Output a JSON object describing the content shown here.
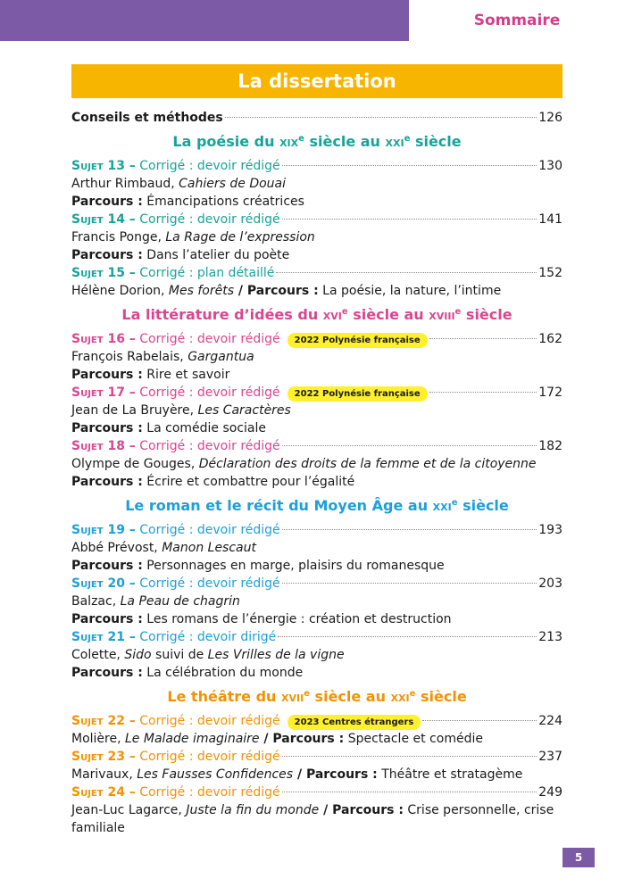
{
  "header": {
    "tab": "Sommaire"
  },
  "title": "La dissertation",
  "intro": {
    "label": "Conseils et méthodes",
    "page": "126"
  },
  "sections": [
    {
      "title": [
        "La poésie du ",
        "xix",
        "e",
        " siècle au ",
        "xxi",
        "e",
        " siècle"
      ],
      "entries": [
        {
          "subject": "Sujet 13 –",
          "kind": "Corrigé : devoir rédigé",
          "page": "130",
          "lines": [
            [
              {
                "t": "Arthur Rimbaud, ",
                "s": "r"
              },
              {
                "t": "Cahiers de Douai",
                "s": "i"
              }
            ],
            [
              {
                "t": "Parcours :",
                "s": "b"
              },
              {
                "t": " Émancipations créatrices",
                "s": "r"
              }
            ]
          ]
        },
        {
          "subject": "Sujet 14 –",
          "kind": "Corrigé : devoir rédigé",
          "page": "141",
          "lines": [
            [
              {
                "t": "Francis Ponge, ",
                "s": "r"
              },
              {
                "t": "La Rage de l’expression",
                "s": "i"
              }
            ],
            [
              {
                "t": "Parcours :",
                "s": "b"
              },
              {
                "t": " Dans l’atelier du poète",
                "s": "r"
              }
            ]
          ]
        },
        {
          "subject": "Sujet 15 –",
          "kind": "Corrigé : plan détaillé",
          "page": "152",
          "lines": [
            [
              {
                "t": "Hélène Dorion, ",
                "s": "r"
              },
              {
                "t": "Mes forêts",
                "s": "i"
              },
              {
                "t": " / Parcours :",
                "s": "b"
              },
              {
                "t": " La poésie, la nature, l’intime",
                "s": "r"
              }
            ]
          ]
        }
      ]
    },
    {
      "title": [
        "La littérature d’idées du ",
        "xvi",
        "e",
        " siècle au ",
        "xviii",
        "e",
        " siècle"
      ],
      "entries": [
        {
          "subject": "Sujet 16 –",
          "kind": "Corrigé : devoir rédigé",
          "badge": "2022 Polynésie française",
          "page": "162",
          "lines": [
            [
              {
                "t": "François Rabelais, ",
                "s": "r"
              },
              {
                "t": "Gargantua",
                "s": "i"
              }
            ],
            [
              {
                "t": "Parcours :",
                "s": "b"
              },
              {
                "t": " Rire et savoir",
                "s": "r"
              }
            ]
          ]
        },
        {
          "subject": "Sujet 17 –",
          "kind": "Corrigé : devoir rédigé",
          "badge": "2022 Polynésie française",
          "page": "172",
          "lines": [
            [
              {
                "t": "Jean de La Bruyère, ",
                "s": "r"
              },
              {
                "t": "Les Caractères",
                "s": "i"
              }
            ],
            [
              {
                "t": "Parcours :",
                "s": "b"
              },
              {
                "t": " La comédie sociale",
                "s": "r"
              }
            ]
          ]
        },
        {
          "subject": "Sujet 18 –",
          "kind": "Corrigé : devoir rédigé",
          "page": "182",
          "lines": [
            [
              {
                "t": "Olympe de Gouges, ",
                "s": "r"
              },
              {
                "t": "Déclaration des droits de la femme et de la citoyenne",
                "s": "i"
              }
            ],
            [
              {
                "t": "Parcours :",
                "s": "b"
              },
              {
                "t": " Écrire et combattre pour l’égalité",
                "s": "r"
              }
            ]
          ]
        }
      ]
    },
    {
      "title": [
        "Le roman et le récit du Moyen Âge au ",
        "xxi",
        "e",
        " siècle"
      ],
      "entries": [
        {
          "subject": "Sujet 19 –",
          "kind": "Corrigé : devoir rédigé",
          "page": "193",
          "lines": [
            [
              {
                "t": "Abbé Prévost, ",
                "s": "r"
              },
              {
                "t": "Manon Lescaut",
                "s": "i"
              }
            ],
            [
              {
                "t": "Parcours :",
                "s": "b"
              },
              {
                "t": " Personnages en marge, plaisirs du romanesque",
                "s": "r"
              }
            ]
          ]
        },
        {
          "subject": "Sujet 20 –",
          "kind": "Corrigé : devoir rédigé",
          "page": "203",
          "lines": [
            [
              {
                "t": "Balzac, ",
                "s": "r"
              },
              {
                "t": "La Peau de chagrin",
                "s": "i"
              }
            ],
            [
              {
                "t": "Parcours :",
                "s": "b"
              },
              {
                "t": " Les romans de l’énergie : création et destruction",
                "s": "r"
              }
            ]
          ]
        },
        {
          "subject": "Sujet 21 –",
          "kind": "Corrigé : devoir dirigé",
          "page": "213",
          "lines": [
            [
              {
                "t": "Colette, ",
                "s": "r"
              },
              {
                "t": "Sido",
                "s": "i"
              },
              {
                "t": " suivi de ",
                "s": "r"
              },
              {
                "t": "Les Vrilles de la vigne",
                "s": "i"
              }
            ],
            [
              {
                "t": "Parcours :",
                "s": "b"
              },
              {
                "t": " La célébration du monde",
                "s": "r"
              }
            ]
          ]
        }
      ]
    },
    {
      "title": [
        "Le théâtre du ",
        "xvii",
        "e",
        " siècle au ",
        "xxi",
        "e",
        " siècle"
      ],
      "entries": [
        {
          "subject": "Sujet 22 –",
          "kind": "Corrigé : devoir rédigé",
          "badge": "2023 Centres étrangers",
          "page": "224",
          "lines": [
            [
              {
                "t": "Molière, ",
                "s": "r"
              },
              {
                "t": "Le Malade imaginaire",
                "s": "i"
              },
              {
                "t": " / Parcours :",
                "s": "b"
              },
              {
                "t": " Spectacle et comédie",
                "s": "r"
              }
            ]
          ]
        },
        {
          "subject": "Sujet 23 –",
          "kind": "Corrigé : devoir rédigé",
          "page": "237",
          "lines": [
            [
              {
                "t": "Marivaux, ",
                "s": "r"
              },
              {
                "t": "Les Fausses Confidences",
                "s": "i"
              },
              {
                "t": " / Parcours :",
                "s": "b"
              },
              {
                "t": " Théâtre et stratagème",
                "s": "r"
              }
            ]
          ]
        },
        {
          "subject": "Sujet 24 –",
          "kind": "Corrigé : devoir rédigé",
          "page": "249",
          "lines": [
            [
              {
                "t": "Jean-Luc Lagarce, ",
                "s": "r"
              },
              {
                "t": "Juste la fin du monde",
                "s": "i"
              },
              {
                "t": " / Parcours :",
                "s": "b"
              },
              {
                "t": " Crise personnelle, crise familiale",
                "s": "r"
              }
            ]
          ]
        }
      ]
    }
  ],
  "footer": {
    "page": "5"
  }
}
